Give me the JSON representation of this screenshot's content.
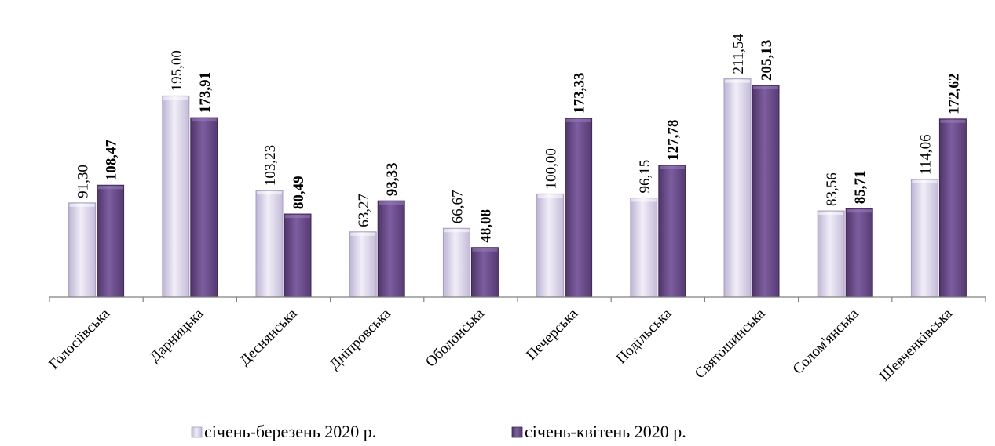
{
  "chart_data": {
    "type": "bar",
    "title": "",
    "xlabel": "",
    "ylabel": "",
    "ylim": [
      0,
      240
    ],
    "grid": false,
    "legend_position": "bottom",
    "categories": [
      "Голосіївська",
      "Дарницька",
      "Деснянська",
      "Дніпровська",
      "Оболонська",
      "Печерська",
      "Подільська",
      "Святошинська",
      "Солом'янська",
      "Шевченківська"
    ],
    "series": [
      {
        "name": "січень-березень 2020 р.",
        "color": "#d9d4e8",
        "values": [
          91.3,
          195.0,
          103.23,
          63.27,
          66.67,
          100.0,
          96.15,
          211.54,
          83.56,
          114.06
        ],
        "labels": [
          "91,30",
          "195,00",
          "103,23",
          "63,27",
          "66,67",
          "100,00",
          "96,15",
          "211,54",
          "83,56",
          "114,06"
        ],
        "label_bold": false
      },
      {
        "name": "січень-квітень 2020 р.",
        "color": "#6a4b8c",
        "values": [
          108.47,
          173.91,
          80.49,
          93.33,
          48.08,
          173.33,
          127.78,
          205.13,
          85.71,
          172.62
        ],
        "labels": [
          "108,47",
          "173,91",
          "80,49",
          "93,33",
          "48,08",
          "173,33",
          "127,78",
          "205,13",
          "85,71",
          "172,62"
        ],
        "label_bold": true
      }
    ]
  }
}
